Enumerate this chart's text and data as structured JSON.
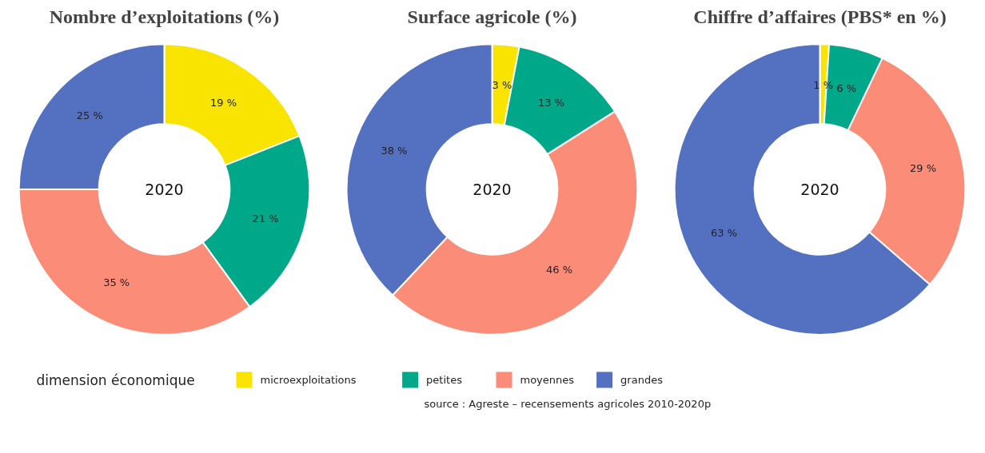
{
  "chart_data": [
    {
      "type": "donut",
      "title": "Nombre d’exploitations (%)",
      "categories": [
        "microexploitations",
        "petites",
        "moyennes",
        "grandes"
      ],
      "values": [
        19,
        21,
        35,
        25
      ],
      "colors": [
        "#f9e300",
        "#00a88a",
        "#fa8c78",
        "#5470c0"
      ],
      "value_labels": [
        "19 %",
        "21 %",
        "35 %",
        "25 %"
      ],
      "annotations": [
        "2020",
        "source : Agreste – recensements agricoles 2010-2020p"
      ],
      "legend": "bottom",
      "legend_title": "dimension économique"
    },
    {
      "type": "donut",
      "title": "Surface agricole (%)",
      "categories": [
        null,
        null,
        null,
        null
      ],
      "values": [
        3,
        13,
        46,
        38
      ],
      "colors": [
        "#f9e300",
        "#00a88a",
        "#fa8c78",
        "#5470c0"
      ],
      "value_labels": [
        "3 %",
        "13 %",
        "46 %",
        "38 %"
      ],
      "annotations": [
        "2020"
      ]
    },
    {
      "type": "donut",
      "title": "Chiffre d’affaires (PBS* en %)",
      "categories": [
        null,
        null,
        null,
        null
      ],
      "values": [
        1,
        6,
        29,
        63
      ],
      "colors": [
        "#f9e300",
        "#00a88a",
        "#fa8c78",
        "#5470c0"
      ],
      "value_labels": [
        "1 %",
        "6 %",
        "29 %",
        "63 %"
      ],
      "annotations": [
        "2020"
      ]
    }
  ]
}
